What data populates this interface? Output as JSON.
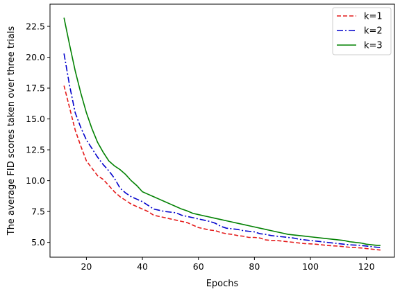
{
  "chart_data": {
    "type": "line",
    "title": "",
    "xlabel": "Epochs",
    "ylabel": "The average FID scores taken over three trials",
    "xlim": [
      7,
      130
    ],
    "ylim": [
      3.8,
      24.3
    ],
    "xticks": [
      20,
      40,
      60,
      80,
      100,
      120
    ],
    "yticks": [
      5.0,
      7.5,
      10.0,
      12.5,
      15.0,
      17.5,
      20.0,
      22.5
    ],
    "xtick_labels": [
      "20",
      "40",
      "60",
      "80",
      "100",
      "120"
    ],
    "ytick_labels": [
      "5.0",
      "7.5",
      "10.0",
      "12.5",
      "15.0",
      "17.5",
      "20.0",
      "22.5"
    ],
    "grid": false,
    "legend_position": "top-right",
    "x": [
      12,
      14,
      16,
      18,
      20,
      22,
      24,
      26,
      28,
      30,
      32,
      34,
      36,
      38,
      40,
      42,
      44,
      46,
      48,
      50,
      52,
      54,
      56,
      58,
      60,
      62,
      64,
      66,
      68,
      70,
      72,
      74,
      76,
      78,
      80,
      82,
      84,
      86,
      88,
      90,
      92,
      94,
      96,
      98,
      100,
      102,
      104,
      106,
      108,
      110,
      112,
      114,
      116,
      118,
      120,
      122,
      124,
      125
    ],
    "series": [
      {
        "name": "k=1",
        "color": "#e41a1a",
        "style": "dashed",
        "values": [
          17.7,
          15.9,
          14.1,
          12.8,
          11.6,
          11.0,
          10.4,
          10.1,
          9.6,
          9.1,
          8.7,
          8.4,
          8.1,
          7.9,
          7.7,
          7.5,
          7.2,
          7.1,
          7.0,
          6.9,
          6.8,
          6.7,
          6.6,
          6.4,
          6.2,
          6.1,
          6.0,
          5.95,
          5.8,
          5.7,
          5.65,
          5.55,
          5.5,
          5.4,
          5.4,
          5.35,
          5.2,
          5.15,
          5.15,
          5.1,
          5.05,
          5.0,
          4.95,
          4.9,
          4.88,
          4.85,
          4.8,
          4.75,
          4.72,
          4.7,
          4.65,
          4.6,
          4.58,
          4.55,
          4.5,
          4.45,
          4.4,
          4.38
        ]
      },
      {
        "name": "k=2",
        "color": "#0000cc",
        "style": "dashdot",
        "values": [
          20.3,
          17.7,
          15.5,
          14.3,
          13.3,
          12.6,
          11.9,
          11.3,
          10.8,
          10.2,
          9.4,
          9.0,
          8.7,
          8.5,
          8.3,
          8.0,
          7.7,
          7.6,
          7.5,
          7.45,
          7.4,
          7.2,
          7.1,
          7.0,
          6.9,
          6.8,
          6.7,
          6.55,
          6.3,
          6.15,
          6.1,
          6.05,
          5.95,
          5.9,
          5.85,
          5.7,
          5.65,
          5.55,
          5.5,
          5.45,
          5.4,
          5.35,
          5.25,
          5.2,
          5.15,
          5.1,
          5.05,
          5.0,
          4.95,
          4.9,
          4.85,
          4.8,
          4.78,
          4.75,
          4.7,
          4.65,
          4.6,
          4.58
        ]
      },
      {
        "name": "k=3",
        "color": "#008000",
        "style": "solid",
        "values": [
          23.2,
          21.0,
          18.9,
          17.1,
          15.5,
          14.2,
          13.1,
          12.3,
          11.6,
          11.2,
          10.9,
          10.5,
          10.0,
          9.6,
          9.1,
          8.9,
          8.7,
          8.5,
          8.3,
          8.1,
          7.9,
          7.7,
          7.55,
          7.35,
          7.25,
          7.15,
          7.05,
          6.95,
          6.85,
          6.75,
          6.65,
          6.55,
          6.45,
          6.35,
          6.25,
          6.15,
          6.05,
          5.95,
          5.85,
          5.75,
          5.65,
          5.6,
          5.55,
          5.5,
          5.45,
          5.4,
          5.35,
          5.3,
          5.25,
          5.2,
          5.15,
          5.05,
          5.0,
          4.95,
          4.85,
          4.8,
          4.75,
          4.75
        ]
      }
    ]
  }
}
